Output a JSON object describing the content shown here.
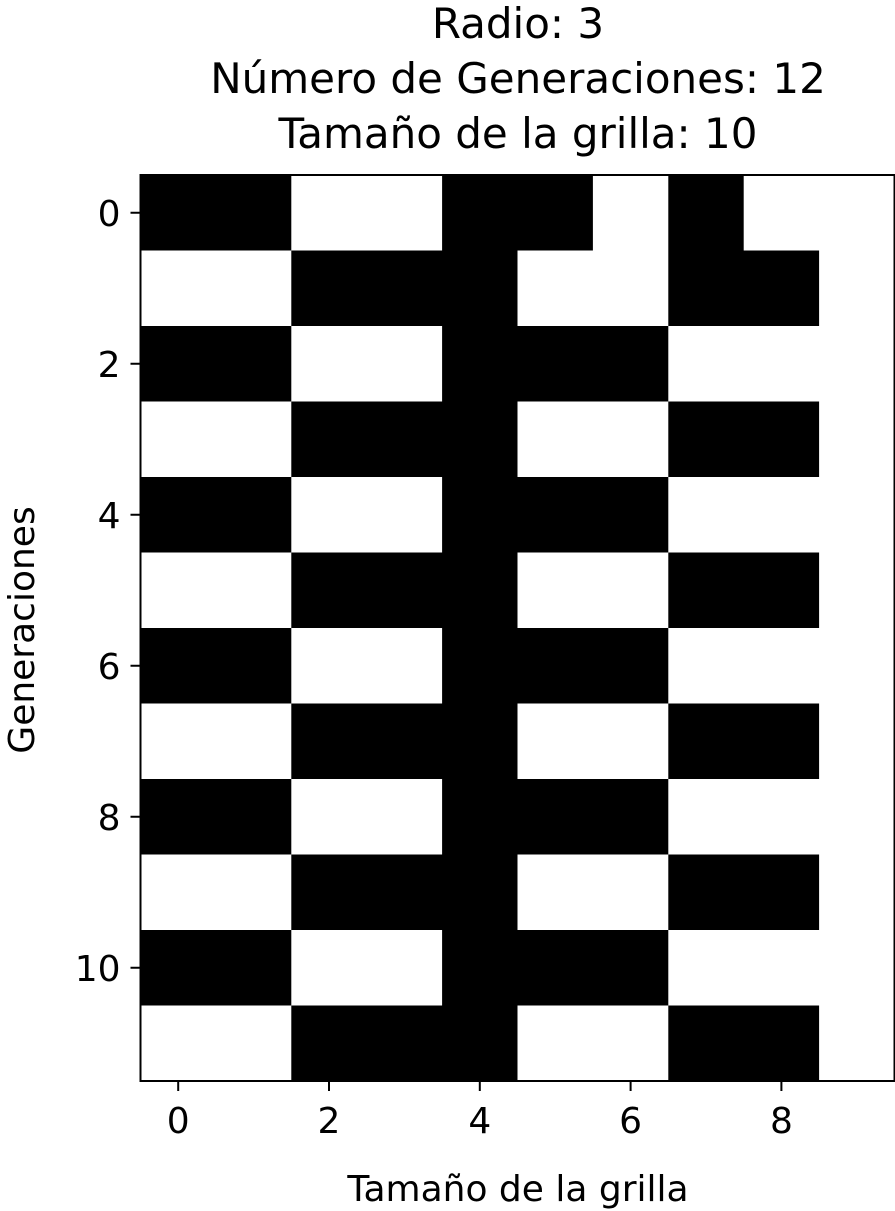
{
  "chart_data": {
    "type": "heatmap",
    "title_lines": [
      "Radio: 3",
      "Número de Generaciones: 12",
      "Tamaño de la grilla: 10"
    ],
    "xlabel": "Tamaño de la grilla",
    "ylabel": "Generaciones",
    "x_ticks": [
      0,
      2,
      4,
      6,
      8
    ],
    "y_ticks": [
      0,
      2,
      4,
      6,
      8,
      10
    ],
    "x_tick_labels": [
      "0",
      "2",
      "4",
      "6",
      "8"
    ],
    "y_tick_labels": [
      "0",
      "2",
      "4",
      "6",
      "8",
      "10"
    ],
    "xlim": [
      -0.5,
      9.5
    ],
    "ylim": [
      11.5,
      -0.5
    ],
    "colormap": {
      "0": "#ffffff",
      "1": "#000000"
    },
    "grid": [
      [
        1,
        1,
        0,
        0,
        1,
        1,
        0,
        1,
        0,
        0
      ],
      [
        0,
        0,
        1,
        1,
        1,
        0,
        0,
        1,
        1,
        0
      ],
      [
        1,
        1,
        0,
        0,
        1,
        1,
        1,
        0,
        0,
        0
      ],
      [
        0,
        0,
        1,
        1,
        1,
        0,
        0,
        1,
        1,
        0
      ],
      [
        1,
        1,
        0,
        0,
        1,
        1,
        1,
        0,
        0,
        0
      ],
      [
        0,
        0,
        1,
        1,
        1,
        0,
        0,
        1,
        1,
        0
      ],
      [
        1,
        1,
        0,
        0,
        1,
        1,
        1,
        0,
        0,
        0
      ],
      [
        0,
        0,
        1,
        1,
        1,
        0,
        0,
        1,
        1,
        0
      ],
      [
        1,
        1,
        0,
        0,
        1,
        1,
        1,
        0,
        0,
        0
      ],
      [
        0,
        0,
        1,
        1,
        1,
        0,
        0,
        1,
        1,
        0
      ],
      [
        1,
        1,
        0,
        0,
        1,
        1,
        1,
        0,
        0,
        0
      ],
      [
        0,
        0,
        1,
        1,
        1,
        0,
        0,
        1,
        1,
        0
      ]
    ]
  }
}
